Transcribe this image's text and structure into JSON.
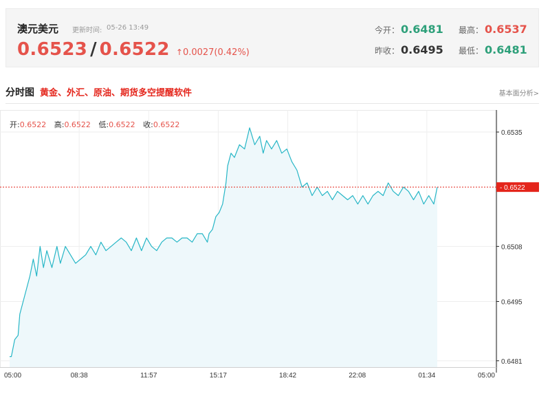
{
  "header": {
    "pair_name": "澳元美元",
    "update_label": "更新时间:",
    "update_time": "05-26 13:49",
    "bid": "0.6523",
    "separator": "/",
    "ask": "0.6522",
    "change_arrow": "↑",
    "change": "0.0027(0.42%)",
    "stats": {
      "open_label": "今开：",
      "open_value": "0.6481",
      "prev_close_label": "昨收：",
      "prev_close_value": "0.6495",
      "high_label": "最高：",
      "high_value": "0.6537",
      "low_label": "最低：",
      "low_value": "0.6481"
    },
    "colors": {
      "up": "#e5534b",
      "down": "#2ea07a"
    }
  },
  "section": {
    "title": "分时图",
    "promo": "黄金、外汇、原油、期货多空提醒软件",
    "link": "基本面分析>"
  },
  "ohlc": {
    "open_label": "开:",
    "open": "0.6522",
    "high_label": "高:",
    "high": "0.6522",
    "low_label": "低:",
    "low": "0.6522",
    "close_label": "收:",
    "close": "0.6522"
  },
  "chart_data": {
    "type": "area",
    "title": "",
    "xlabel": "",
    "ylabel": "",
    "x_ticks": [
      "05:00",
      "08:38",
      "11:57",
      "15:17",
      "18:42",
      "22:08",
      "01:34",
      "05:00"
    ],
    "y_ticks": [
      0.6535,
      0.6508,
      0.6495,
      0.6481
    ],
    "ylim": [
      0.64795,
      0.65402
    ],
    "current_price": 0.6522,
    "current_price_label": "0.6522",
    "grid": true,
    "line_color": "#26b6c6",
    "fill_color": "#eef8fb",
    "marker_color": "#e4251b",
    "series": [
      {
        "x": [
          0,
          1,
          3,
          5,
          6,
          8,
          10,
          12,
          14,
          16,
          18,
          20,
          22,
          25,
          28,
          30,
          33,
          36,
          39,
          42,
          45,
          48,
          51,
          54,
          57,
          60,
          63,
          66,
          69,
          72,
          75,
          78,
          81,
          84,
          87,
          90,
          93,
          96,
          99,
          102,
          105,
          108,
          111,
          114,
          117,
          118,
          120,
          122,
          124,
          126,
          128,
          129,
          131,
          133,
          136,
          139,
          142,
          145,
          148,
          150,
          152,
          155,
          158,
          161,
          164,
          167,
          170,
          173,
          176,
          179,
          182,
          185,
          188,
          191,
          194,
          197,
          200,
          203,
          206,
          209,
          212,
          215,
          218,
          221,
          224,
          227,
          230,
          233,
          236,
          239,
          242,
          245,
          248,
          251,
          253
        ],
        "y": [
          0.6482,
          0.6482,
          0.6486,
          0.6487,
          0.6492,
          0.6495,
          0.6498,
          0.6501,
          0.6505,
          0.6501,
          0.6508,
          0.6503,
          0.6507,
          0.6503,
          0.6508,
          0.6504,
          0.6508,
          0.6506,
          0.6504,
          0.6505,
          0.6506,
          0.6508,
          0.6506,
          0.6509,
          0.6507,
          0.6508,
          0.6509,
          0.651,
          0.6509,
          0.6507,
          0.651,
          0.6507,
          0.651,
          0.6508,
          0.6507,
          0.6509,
          0.651,
          0.651,
          0.6509,
          0.651,
          0.651,
          0.6509,
          0.6511,
          0.6511,
          0.6509,
          0.6511,
          0.6512,
          0.6515,
          0.6516,
          0.6518,
          0.6523,
          0.6527,
          0.653,
          0.6529,
          0.6532,
          0.6531,
          0.6536,
          0.6532,
          0.6534,
          0.653,
          0.6533,
          0.6531,
          0.6533,
          0.653,
          0.6531,
          0.6528,
          0.6526,
          0.6522,
          0.6523,
          0.652,
          0.6522,
          0.652,
          0.6521,
          0.6519,
          0.6521,
          0.652,
          0.6519,
          0.652,
          0.6518,
          0.652,
          0.6518,
          0.652,
          0.6521,
          0.652,
          0.6523,
          0.6521,
          0.652,
          0.6522,
          0.6521,
          0.6519,
          0.6521,
          0.6518,
          0.652,
          0.6518,
          0.6522
        ]
      }
    ]
  }
}
